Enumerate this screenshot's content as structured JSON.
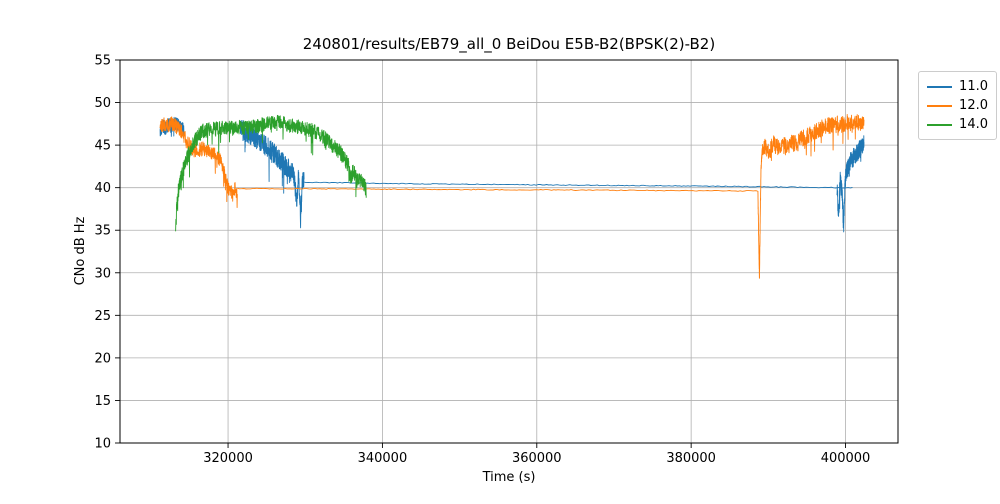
{
  "chart_data": {
    "type": "line",
    "title": "240801/results/EB79_all_0 BeiDou E5B-B2(BPSK(2)-B2)",
    "xlabel": "Time (s)",
    "ylabel": "CNo dB Hz",
    "xlim": [
      306000,
      406800
    ],
    "ylim": [
      10,
      55
    ],
    "xticks": [
      320000,
      340000,
      360000,
      380000,
      400000
    ],
    "yticks": [
      10,
      15,
      20,
      25,
      30,
      35,
      40,
      45,
      50,
      55
    ],
    "grid": true,
    "grid_color": "#b0b0b0",
    "frame_color": "#000000",
    "legend": {
      "position": "outside-top-right"
    },
    "series": [
      {
        "name": "11.0",
        "color": "#1f77b4",
        "segments": [
          {
            "anchors": [
              [
                311200,
                46.6
              ],
              [
                311500,
                47.3
              ],
              [
                311900,
                47.0
              ],
              [
                312300,
                47.5
              ],
              [
                312700,
                47.2
              ],
              [
                313100,
                47.6
              ],
              [
                313500,
                47.4
              ],
              [
                313900,
                47.1
              ],
              [
                314300,
                46.7
              ]
            ],
            "noise": 0.8,
            "n": 240,
            "spike": {
              "p": 0.03,
              "max": 1.5
            }
          },
          {
            "anchors": [
              [
                321600,
                46.9
              ],
              [
                322400,
                46.5
              ],
              [
                323200,
                46.0
              ],
              [
                324000,
                45.6
              ],
              [
                324800,
                45.0
              ],
              [
                325600,
                44.4
              ],
              [
                326200,
                43.8
              ],
              [
                326800,
                43.2
              ],
              [
                327400,
                42.6
              ],
              [
                328000,
                42.0
              ],
              [
                328500,
                41.5
              ],
              [
                328900,
                38.5
              ],
              [
                329150,
                41.8
              ],
              [
                329400,
                36.3
              ],
              [
                329650,
                41.0
              ],
              [
                329850,
                40.7
              ]
            ],
            "noise": 1.2,
            "n": 460,
            "spike": {
              "p": 0.05,
              "max": 3
            }
          },
          {
            "anchors": [
              [
                329850,
                40.65
              ],
              [
                345000,
                40.45
              ],
              [
                365000,
                40.3
              ],
              [
                385000,
                40.15
              ],
              [
                398800,
                40.0
              ],
              [
                400900,
                40.0
              ]
            ],
            "noise": 0.05,
            "n": 260
          },
          {
            "anchors": [
              [
                398900,
                40.0
              ],
              [
                399100,
                36.8
              ],
              [
                399300,
                40.8
              ],
              [
                399550,
                39.5
              ],
              [
                399750,
                35.3
              ],
              [
                399950,
                41.0
              ],
              [
                400200,
                42.0
              ],
              [
                400500,
                42.8
              ],
              [
                400900,
                43.4
              ],
              [
                401300,
                43.9
              ],
              [
                401700,
                44.4
              ],
              [
                402100,
                44.8
              ],
              [
                402400,
                45.1
              ]
            ],
            "noise": 1.1,
            "n": 240,
            "spike": {
              "p": 0.04,
              "max": 2.5
            }
          }
        ]
      },
      {
        "name": "12.0",
        "color": "#ff7f0e",
        "segments": [
          {
            "anchors": [
              [
                311200,
                47.2
              ],
              [
                311700,
                47.6
              ],
              [
                312200,
                47.3
              ],
              [
                312700,
                47.6
              ],
              [
                313200,
                47.2
              ],
              [
                313700,
                46.9
              ],
              [
                314200,
                46.2
              ],
              [
                314700,
                45.3
              ],
              [
                315300,
                44.7
              ],
              [
                316000,
                44.3
              ],
              [
                316700,
                44.6
              ],
              [
                317400,
                44.3
              ],
              [
                318100,
                44.1
              ],
              [
                318700,
                43.7
              ],
              [
                319200,
                42.8
              ],
              [
                319600,
                41.3
              ],
              [
                319900,
                40.2
              ],
              [
                320200,
                39.7
              ],
              [
                320600,
                39.2
              ],
              [
                320900,
                39.9
              ],
              [
                321200,
                39.4
              ]
            ],
            "noise": 0.85,
            "n": 420,
            "spike": {
              "p": 0.03,
              "max": 2
            }
          },
          {
            "anchors": [
              [
                321200,
                39.9
              ],
              [
                345000,
                39.8
              ],
              [
                370000,
                39.7
              ],
              [
                388600,
                39.6
              ]
            ],
            "noise": 0.05,
            "n": 240
          },
          {
            "anchors": [
              [
                388650,
                39.4
              ],
              [
                388750,
                34.0
              ],
              [
                388850,
                29.2
              ],
              [
                388950,
                36.5
              ],
              [
                389050,
                42.0
              ],
              [
                389150,
                43.8
              ]
            ],
            "noise": 0.4,
            "n": 70
          },
          {
            "anchors": [
              [
                389150,
                43.9
              ],
              [
                389600,
                44.8
              ],
              [
                390100,
                44.3
              ],
              [
                390700,
                45.1
              ],
              [
                391300,
                44.6
              ],
              [
                391900,
                45.0
              ],
              [
                392500,
                44.7
              ],
              [
                393100,
                45.3
              ],
              [
                393700,
                45.1
              ],
              [
                394300,
                45.7
              ],
              [
                394900,
                45.9
              ],
              [
                395500,
                46.3
              ],
              [
                396100,
                46.6
              ],
              [
                396700,
                46.9
              ],
              [
                397300,
                47.1
              ],
              [
                397900,
                47.3
              ],
              [
                398500,
                47.2
              ],
              [
                399100,
                47.5
              ],
              [
                399700,
                47.4
              ],
              [
                400300,
                47.7
              ],
              [
                400900,
                47.6
              ],
              [
                401500,
                47.8
              ],
              [
                402000,
                47.6
              ],
              [
                402400,
                47.8
              ]
            ],
            "noise": 1.0,
            "n": 480,
            "spike": {
              "p": 0.04,
              "max": 2.5
            }
          }
        ]
      },
      {
        "name": "14.0",
        "color": "#2ca02c",
        "segments": [
          {
            "anchors": [
              [
                313200,
                35.4
              ],
              [
                313350,
                37.8
              ],
              [
                313550,
                39.5
              ],
              [
                313800,
                40.8
              ],
              [
                314100,
                41.8
              ],
              [
                314500,
                43.0
              ],
              [
                315000,
                44.2
              ],
              [
                315500,
                45.2
              ],
              [
                316000,
                45.9
              ],
              [
                316500,
                46.4
              ]
            ],
            "noise": 0.9,
            "n": 220,
            "spike": {
              "p": 0.05,
              "max": 2.5
            }
          },
          {
            "anchors": [
              [
                316500,
                46.6
              ],
              [
                317500,
                46.8
              ],
              [
                318500,
                46.9
              ],
              [
                319500,
                47.0
              ],
              [
                320500,
                47.0
              ],
              [
                321500,
                47.1
              ],
              [
                322500,
                47.0
              ],
              [
                323500,
                47.2
              ],
              [
                324500,
                47.4
              ],
              [
                325300,
                47.6
              ],
              [
                326100,
                47.8
              ],
              [
                326900,
                47.6
              ],
              [
                327700,
                47.4
              ],
              [
                328500,
                47.2
              ],
              [
                329300,
                47.1
              ],
              [
                330100,
                46.9
              ],
              [
                330900,
                46.7
              ],
              [
                331700,
                46.3
              ],
              [
                332400,
                45.9
              ]
            ],
            "noise": 0.85,
            "n": 620,
            "spike": {
              "p": 0.04,
              "max": 2.2
            }
          },
          {
            "anchors": [
              [
                332400,
                45.9
              ],
              [
                333100,
                45.3
              ],
              [
                333800,
                44.8
              ],
              [
                334500,
                44.2
              ],
              [
                335100,
                43.4
              ],
              [
                335600,
                42.6
              ],
              [
                335900,
                40.9
              ],
              [
                336200,
                42.0
              ],
              [
                336600,
                41.1
              ],
              [
                337000,
                40.8
              ],
              [
                337400,
                41.0
              ],
              [
                337700,
                40.3
              ],
              [
                337900,
                39.6
              ]
            ],
            "noise": 0.9,
            "n": 260,
            "spike": {
              "p": 0.05,
              "max": 2
            }
          }
        ]
      }
    ]
  }
}
